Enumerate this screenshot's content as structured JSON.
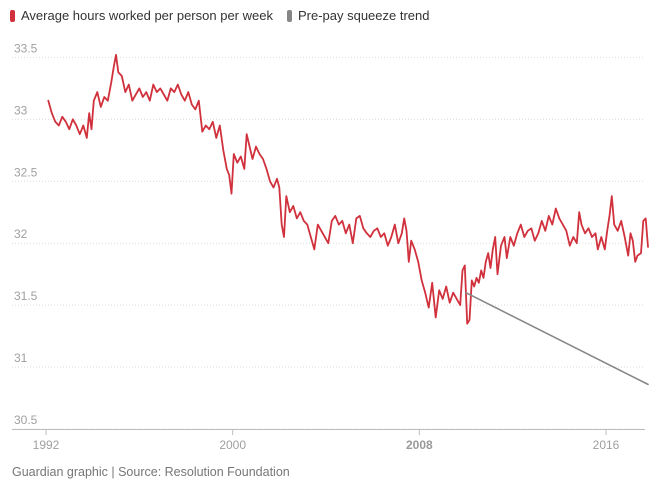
{
  "legend": [
    {
      "label": "Average hours worked per person per week",
      "color": "#d0313c"
    },
    {
      "label": "Pre-pay squeeze trend",
      "color": "#878787"
    }
  ],
  "footer": {
    "source": "Guardian graphic | Source: Resolution Foundation"
  },
  "chart_data": {
    "type": "line",
    "title": "",
    "xlabel": "",
    "ylabel": "",
    "xlim": [
      1992,
      2017.5
    ],
    "ylim": [
      30.5,
      33.6
    ],
    "grid": "horizontal",
    "legend_position": "top-left",
    "x_ticks": [
      {
        "value": 1992,
        "label": "1992",
        "bold": false
      },
      {
        "value": 2000,
        "label": "2000",
        "bold": false
      },
      {
        "value": 2008,
        "label": "2008",
        "bold": true
      },
      {
        "value": 2016,
        "label": "2016",
        "bold": false
      }
    ],
    "y_ticks": [
      30.5,
      31,
      31.5,
      32,
      32.5,
      33,
      33.5
    ],
    "series": [
      {
        "name": "Average hours worked per person per week",
        "color": "#d0313c",
        "points": [
          [
            1992.1,
            33.15
          ],
          [
            1992.25,
            33.05
          ],
          [
            1992.4,
            32.98
          ],
          [
            1992.55,
            32.95
          ],
          [
            1992.7,
            33.02
          ],
          [
            1992.85,
            32.98
          ],
          [
            1993.0,
            32.92
          ],
          [
            1993.15,
            33.0
          ],
          [
            1993.3,
            32.95
          ],
          [
            1993.45,
            32.88
          ],
          [
            1993.6,
            32.95
          ],
          [
            1993.75,
            32.85
          ],
          [
            1993.85,
            33.05
          ],
          [
            1993.95,
            32.92
          ],
          [
            1994.05,
            33.15
          ],
          [
            1994.2,
            33.22
          ],
          [
            1994.35,
            33.1
          ],
          [
            1994.5,
            33.18
          ],
          [
            1994.65,
            33.15
          ],
          [
            1994.8,
            33.3
          ],
          [
            1994.9,
            33.42
          ],
          [
            1995.0,
            33.52
          ],
          [
            1995.1,
            33.38
          ],
          [
            1995.25,
            33.35
          ],
          [
            1995.4,
            33.22
          ],
          [
            1995.55,
            33.28
          ],
          [
            1995.7,
            33.15
          ],
          [
            1995.85,
            33.2
          ],
          [
            1996.0,
            33.25
          ],
          [
            1996.15,
            33.18
          ],
          [
            1996.3,
            33.22
          ],
          [
            1996.45,
            33.15
          ],
          [
            1996.6,
            33.28
          ],
          [
            1996.75,
            33.22
          ],
          [
            1996.9,
            33.25
          ],
          [
            1997.05,
            33.2
          ],
          [
            1997.2,
            33.15
          ],
          [
            1997.35,
            33.25
          ],
          [
            1997.5,
            33.22
          ],
          [
            1997.65,
            33.28
          ],
          [
            1997.8,
            33.2
          ],
          [
            1997.95,
            33.15
          ],
          [
            1998.1,
            33.22
          ],
          [
            1998.25,
            33.12
          ],
          [
            1998.4,
            33.08
          ],
          [
            1998.55,
            33.15
          ],
          [
            1998.7,
            32.9
          ],
          [
            1998.85,
            32.95
          ],
          [
            1999.0,
            32.92
          ],
          [
            1999.15,
            32.98
          ],
          [
            1999.3,
            32.85
          ],
          [
            1999.45,
            32.95
          ],
          [
            1999.6,
            32.75
          ],
          [
            1999.75,
            32.6
          ],
          [
            1999.85,
            32.55
          ],
          [
            1999.95,
            32.4
          ],
          [
            2000.05,
            32.72
          ],
          [
            2000.2,
            32.65
          ],
          [
            2000.35,
            32.7
          ],
          [
            2000.5,
            32.6
          ],
          [
            2000.6,
            32.88
          ],
          [
            2000.7,
            32.8
          ],
          [
            2000.85,
            32.68
          ],
          [
            2001.0,
            32.78
          ],
          [
            2001.15,
            32.72
          ],
          [
            2001.3,
            32.68
          ],
          [
            2001.45,
            32.6
          ],
          [
            2001.6,
            32.5
          ],
          [
            2001.75,
            32.45
          ],
          [
            2001.9,
            32.52
          ],
          [
            2002.0,
            32.45
          ],
          [
            2002.1,
            32.15
          ],
          [
            2002.2,
            32.05
          ],
          [
            2002.3,
            32.38
          ],
          [
            2002.45,
            32.25
          ],
          [
            2002.6,
            32.3
          ],
          [
            2002.75,
            32.2
          ],
          [
            2002.9,
            32.25
          ],
          [
            2003.05,
            32.18
          ],
          [
            2003.2,
            32.15
          ],
          [
            2003.35,
            32.05
          ],
          [
            2003.5,
            31.95
          ],
          [
            2003.65,
            32.15
          ],
          [
            2003.8,
            32.1
          ],
          [
            2003.95,
            32.05
          ],
          [
            2004.1,
            32.0
          ],
          [
            2004.25,
            32.18
          ],
          [
            2004.4,
            32.22
          ],
          [
            2004.55,
            32.15
          ],
          [
            2004.7,
            32.18
          ],
          [
            2004.85,
            32.08
          ],
          [
            2005.0,
            32.15
          ],
          [
            2005.15,
            32.0
          ],
          [
            2005.3,
            32.2
          ],
          [
            2005.45,
            32.22
          ],
          [
            2005.6,
            32.12
          ],
          [
            2005.75,
            32.08
          ],
          [
            2005.9,
            32.05
          ],
          [
            2006.05,
            32.1
          ],
          [
            2006.2,
            32.12
          ],
          [
            2006.35,
            32.05
          ],
          [
            2006.5,
            32.08
          ],
          [
            2006.65,
            31.98
          ],
          [
            2006.8,
            32.05
          ],
          [
            2006.95,
            32.15
          ],
          [
            2007.1,
            32.0
          ],
          [
            2007.25,
            32.08
          ],
          [
            2007.35,
            32.2
          ],
          [
            2007.45,
            32.1
          ],
          [
            2007.55,
            31.85
          ],
          [
            2007.65,
            32.02
          ],
          [
            2007.8,
            31.95
          ],
          [
            2007.95,
            31.85
          ],
          [
            2008.1,
            31.7
          ],
          [
            2008.25,
            31.6
          ],
          [
            2008.4,
            31.48
          ],
          [
            2008.55,
            31.68
          ],
          [
            2008.7,
            31.4
          ],
          [
            2008.85,
            31.62
          ],
          [
            2009.0,
            31.55
          ],
          [
            2009.15,
            31.65
          ],
          [
            2009.3,
            31.52
          ],
          [
            2009.45,
            31.6
          ],
          [
            2009.6,
            31.55
          ],
          [
            2009.75,
            31.5
          ],
          [
            2009.85,
            31.78
          ],
          [
            2009.95,
            31.82
          ],
          [
            2010.05,
            31.35
          ],
          [
            2010.15,
            31.38
          ],
          [
            2010.25,
            31.7
          ],
          [
            2010.35,
            31.65
          ],
          [
            2010.45,
            31.72
          ],
          [
            2010.55,
            31.68
          ],
          [
            2010.65,
            31.78
          ],
          [
            2010.75,
            31.72
          ],
          [
            2010.85,
            31.85
          ],
          [
            2010.95,
            31.92
          ],
          [
            2011.05,
            31.8
          ],
          [
            2011.15,
            31.95
          ],
          [
            2011.25,
            32.05
          ],
          [
            2011.35,
            31.75
          ],
          [
            2011.5,
            31.98
          ],
          [
            2011.65,
            32.05
          ],
          [
            2011.75,
            31.88
          ],
          [
            2011.9,
            32.05
          ],
          [
            2012.05,
            31.98
          ],
          [
            2012.2,
            32.08
          ],
          [
            2012.35,
            32.15
          ],
          [
            2012.5,
            32.05
          ],
          [
            2012.65,
            32.1
          ],
          [
            2012.8,
            32.12
          ],
          [
            2012.95,
            32.02
          ],
          [
            2013.1,
            32.08
          ],
          [
            2013.25,
            32.18
          ],
          [
            2013.4,
            32.1
          ],
          [
            2013.55,
            32.22
          ],
          [
            2013.7,
            32.15
          ],
          [
            2013.85,
            32.28
          ],
          [
            2014.0,
            32.2
          ],
          [
            2014.15,
            32.15
          ],
          [
            2014.3,
            32.1
          ],
          [
            2014.45,
            31.98
          ],
          [
            2014.6,
            32.05
          ],
          [
            2014.75,
            32.0
          ],
          [
            2014.85,
            32.25
          ],
          [
            2014.95,
            32.15
          ],
          [
            2015.1,
            32.08
          ],
          [
            2015.25,
            32.12
          ],
          [
            2015.4,
            32.05
          ],
          [
            2015.55,
            32.08
          ],
          [
            2015.65,
            31.95
          ],
          [
            2015.8,
            32.05
          ],
          [
            2015.95,
            31.95
          ],
          [
            2016.05,
            32.1
          ],
          [
            2016.15,
            32.22
          ],
          [
            2016.25,
            32.38
          ],
          [
            2016.35,
            32.15
          ],
          [
            2016.5,
            32.1
          ],
          [
            2016.65,
            32.18
          ],
          [
            2016.8,
            32.05
          ],
          [
            2016.95,
            31.9
          ],
          [
            2017.05,
            32.08
          ],
          [
            2017.15,
            32.02
          ],
          [
            2017.25,
            31.85
          ],
          [
            2017.35,
            31.9
          ],
          [
            2017.5,
            31.92
          ],
          [
            2017.6,
            32.18
          ],
          [
            2017.7,
            32.2
          ],
          [
            2017.8,
            31.97
          ]
        ]
      },
      {
        "name": "Pre-pay squeeze trend",
        "color": "#878787",
        "points": [
          [
            2010.0,
            31.6
          ],
          [
            2017.8,
            30.86
          ]
        ]
      }
    ]
  }
}
